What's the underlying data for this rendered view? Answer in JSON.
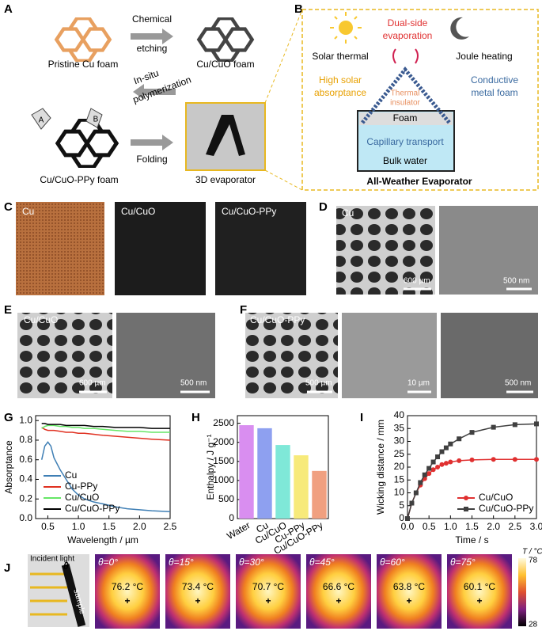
{
  "panel_labels": [
    "A",
    "B",
    "C",
    "D",
    "E",
    "F",
    "G",
    "H",
    "I",
    "J"
  ],
  "panel_a": {
    "pristine": "Pristine Cu foam",
    "etching_top": "Chemical",
    "etching_bottom": "etching",
    "cuo": "Cu/CuO foam",
    "poly_top": "In-situ",
    "poly_bottom": "polymerization",
    "monomer_a": "A",
    "monomer_b": "B",
    "ppy": "Cu/CuO-PPy foam",
    "folding": "Folding",
    "evaporator": "3D evaporator"
  },
  "panel_b": {
    "dual_top": "Dual-side",
    "dual_bottom": "evaporation",
    "solar": "Solar thermal",
    "joule": "Joule heating",
    "high_top": "High solar",
    "high_bottom": "absorptance",
    "cond_top": "Conductive",
    "cond_bottom": "metal foam",
    "ins_top": "Thermal",
    "ins_bottom": "insulator",
    "foam": "Foam",
    "capillary": "Capillary transport",
    "bulk": "Bulk  water",
    "title": "All-Weather Evaporator"
  },
  "panel_c": {
    "labels": [
      "Cu",
      "Cu/CuO",
      "Cu/CuO-PPy"
    ]
  },
  "panel_d": {
    "label": "Cu",
    "scale_bars": [
      "600 µm",
      "500 nm"
    ]
  },
  "panel_e": {
    "label": "Cu/CuO",
    "scale_bars": [
      "600 µm",
      "500 nm"
    ]
  },
  "panel_f": {
    "label": "Cu/CuO-PPy",
    "scale_bars": [
      "500 µm",
      "10 µm",
      "500 nm"
    ]
  },
  "chart_data": [
    {
      "type": "line",
      "x_label": "Wavelength / µm",
      "y_label": "Absorptance",
      "x": [
        0.4,
        0.45,
        0.5,
        0.55,
        0.6,
        0.7,
        0.8,
        0.9,
        1.0,
        1.1,
        1.25,
        1.4,
        1.6,
        1.8,
        2.0,
        2.2,
        2.5
      ],
      "series": [
        {
          "name": "Cu",
          "color": "#3f7fb5",
          "values": [
            0.6,
            0.74,
            0.78,
            0.74,
            0.62,
            0.5,
            0.4,
            0.3,
            0.24,
            0.2,
            0.17,
            0.15,
            0.12,
            0.1,
            0.09,
            0.08,
            0.07
          ]
        },
        {
          "name": "Cu-PPy",
          "color": "#e03020",
          "values": [
            0.93,
            0.91,
            0.9,
            0.9,
            0.9,
            0.89,
            0.88,
            0.88,
            0.87,
            0.87,
            0.86,
            0.85,
            0.84,
            0.83,
            0.82,
            0.81,
            0.8
          ]
        },
        {
          "name": "Cu/CuO",
          "color": "#66e666",
          "values": [
            0.92,
            0.94,
            0.95,
            0.95,
            0.95,
            0.94,
            0.94,
            0.93,
            0.93,
            0.92,
            0.92,
            0.91,
            0.9,
            0.89,
            0.89,
            0.88,
            0.88
          ]
        },
        {
          "name": "Cu/CuO-PPy",
          "color": "#000000",
          "values": [
            0.97,
            0.97,
            0.96,
            0.96,
            0.96,
            0.96,
            0.95,
            0.95,
            0.95,
            0.95,
            0.94,
            0.94,
            0.93,
            0.93,
            0.93,
            0.92,
            0.92
          ]
        }
      ],
      "xlim": [
        0.3,
        2.5
      ],
      "ylim": [
        0,
        1.05
      ],
      "xticks": [
        0.5,
        {
          "value": 1,
          "label": "1.0"
        },
        1.5,
        {
          "value": 2,
          "label": "2.0"
        },
        2.5
      ],
      "yticks": [
        {
          "value": 0,
          "label": "0.0"
        },
        0.2,
        0.4,
        0.6,
        0.8,
        {
          "value": 1,
          "label": "1.0"
        }
      ],
      "legend": "lower left"
    },
    {
      "type": "bar",
      "y_label": "Enthalpy / J g⁻¹",
      "categories": [
        "Water",
        "Cu",
        "Cu/CuO",
        "Cu-PPy",
        "Cu/CuO-PPy"
      ],
      "values": [
        2450,
        2370,
        1930,
        1660,
        1250
      ],
      "colors": [
        "#d98ef0",
        "#8ea0f0",
        "#7fe8d8",
        "#f7ea7a",
        "#f0a080"
      ],
      "ylim": [
        0,
        2700
      ],
      "yticks": [
        0,
        500,
        1000,
        1500,
        2000,
        2500
      ]
    },
    {
      "type": "line",
      "x_label": "Time / s",
      "y_label": "Wicking distance / mm",
      "x": [
        0,
        0.1,
        0.2,
        0.3,
        0.4,
        0.5,
        0.6,
        0.7,
        0.8,
        0.9,
        1.0,
        1.2,
        1.5,
        2.0,
        2.5,
        3.0
      ],
      "series": [
        {
          "name": "Cu/CuO",
          "color": "#e03030",
          "marker": "circle",
          "values": [
            0,
            6,
            10,
            13,
            15.5,
            17.5,
            19,
            20,
            21,
            21.5,
            22,
            22.5,
            22.8,
            23,
            23,
            23
          ]
        },
        {
          "name": "Cu/CuO-PPy",
          "color": "#404040",
          "marker": "square",
          "values": [
            0,
            6,
            10,
            14,
            17,
            19.5,
            22,
            24,
            26,
            27.5,
            29,
            31,
            33.5,
            35.5,
            36.5,
            36.8
          ]
        }
      ],
      "xlim": [
        0,
        3
      ],
      "ylim": [
        0,
        40
      ],
      "xticks": [
        {
          "value": 0,
          "label": "0.0"
        },
        0.5,
        {
          "value": 1,
          "label": "1.0"
        },
        1.5,
        {
          "value": 2,
          "label": "2.0"
        },
        2.5,
        {
          "value": 3,
          "label": "3.0"
        }
      ],
      "yticks": [
        0,
        5,
        10,
        15,
        20,
        25,
        30,
        35,
        40
      ],
      "legend": "lower right"
    }
  ],
  "panel_j": {
    "incident": "Incident light",
    "theta": "θ",
    "sample": "sample",
    "images": [
      {
        "angle": "θ=0°",
        "temp": "76.2 °C"
      },
      {
        "angle": "θ=15°",
        "temp": "73.4 °C"
      },
      {
        "angle": "θ=30°",
        "temp": "70.7 °C"
      },
      {
        "angle": "θ=45°",
        "temp": "66.6 °C"
      },
      {
        "angle": "θ=60°",
        "temp": "63.8 °C"
      },
      {
        "angle": "θ=75°",
        "temp": "60.1 °C"
      }
    ],
    "colorbar_title": "T / °C",
    "colorbar_max": "78",
    "colorbar_min": "28"
  }
}
